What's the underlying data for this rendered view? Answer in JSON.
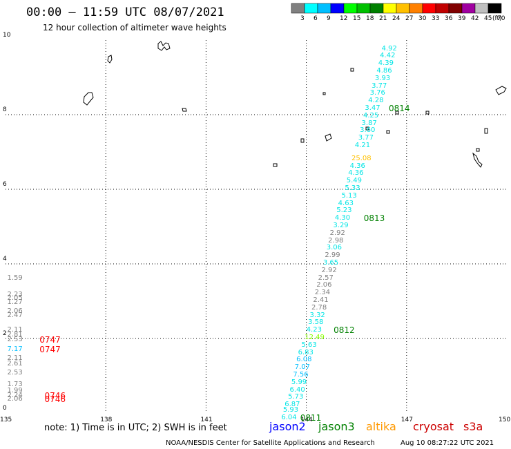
{
  "header": {
    "title": "00:00 – 11:59 UTC 08/07/2021",
    "subtitle": "12 hour collection of altimeter wave heights"
  },
  "legend": {
    "unit": "(ft)",
    "values": [
      "3",
      "6",
      "9",
      "12",
      "15",
      "18",
      "21",
      "24",
      "27",
      "30",
      "33",
      "36",
      "39",
      "42",
      "45",
      "70"
    ],
    "colors": [
      "#808080",
      "#00ffff",
      "#00bfff",
      "#0000ff",
      "#00ff00",
      "#00c000",
      "#008000",
      "#ffff00",
      "#ffc000",
      "#ff8000",
      "#ff0000",
      "#c00000",
      "#800000",
      "#a000a0",
      "#c0c0c0",
      "#000000"
    ]
  },
  "axes": {
    "x_ticks": [
      {
        "value": 135,
        "label": "135"
      },
      {
        "value": 138,
        "label": "138"
      },
      {
        "value": 141,
        "label": "141"
      },
      {
        "value": 144,
        "label": "144"
      },
      {
        "value": 147,
        "label": "147"
      },
      {
        "value": 150,
        "label": "150"
      }
    ],
    "y_ticks": [
      {
        "value": 0,
        "label": "0"
      },
      {
        "value": 2,
        "label": "2"
      },
      {
        "value": 4,
        "label": "4"
      },
      {
        "value": 6,
        "label": "6"
      },
      {
        "value": 8,
        "label": "8"
      },
      {
        "value": 10,
        "label": "10"
      }
    ]
  },
  "observations": [
    {
      "lon": 146.5,
      "lat": 9.75,
      "v": "4.92",
      "c": "#00e5e5"
    },
    {
      "lon": 146.45,
      "lat": 9.55,
      "v": "4.42",
      "c": "#00e5e5"
    },
    {
      "lon": 146.4,
      "lat": 9.35,
      "v": "4.39",
      "c": "#00e5e5"
    },
    {
      "lon": 146.35,
      "lat": 9.15,
      "v": "4.86",
      "c": "#00e5e5"
    },
    {
      "lon": 146.3,
      "lat": 8.95,
      "v": "3.93",
      "c": "#00e5e5"
    },
    {
      "lon": 146.2,
      "lat": 8.75,
      "v": "3.77",
      "c": "#00e5e5"
    },
    {
      "lon": 146.15,
      "lat": 8.55,
      "v": "3.76",
      "c": "#00e5e5"
    },
    {
      "lon": 146.1,
      "lat": 8.35,
      "v": "4.28",
      "c": "#00e5e5"
    },
    {
      "lon": 146.0,
      "lat": 8.15,
      "v": "3.47",
      "c": "#00e5e5"
    },
    {
      "lon": 145.95,
      "lat": 7.95,
      "v": "4.25",
      "c": "#00e5e5"
    },
    {
      "lon": 145.9,
      "lat": 7.75,
      "v": "3.87",
      "c": "#00e5e5"
    },
    {
      "lon": 145.85,
      "lat": 7.55,
      "v": "3.60",
      "c": "#00e5e5"
    },
    {
      "lon": 145.8,
      "lat": 7.35,
      "v": "3.77",
      "c": "#00e5e5"
    },
    {
      "lon": 145.7,
      "lat": 7.15,
      "v": "4.21",
      "c": "#00e5e5"
    },
    {
      "lon": 145.6,
      "lat": 6.8,
      "v": "25.08",
      "c": "#ffc000"
    },
    {
      "lon": 145.55,
      "lat": 6.6,
      "v": "4.36",
      "c": "#00e5e5"
    },
    {
      "lon": 145.5,
      "lat": 6.4,
      "v": "4.36",
      "c": "#00e5e5"
    },
    {
      "lon": 145.45,
      "lat": 6.2,
      "v": "5.49",
      "c": "#00e5e5"
    },
    {
      "lon": 145.4,
      "lat": 6.0,
      "v": "5.33",
      "c": "#00e5e5"
    },
    {
      "lon": 145.3,
      "lat": 5.8,
      "v": "5.13",
      "c": "#00e5e5"
    },
    {
      "lon": 145.2,
      "lat": 5.6,
      "v": "4.63",
      "c": "#00e5e5"
    },
    {
      "lon": 145.15,
      "lat": 5.4,
      "v": "5.23",
      "c": "#00e5e5"
    },
    {
      "lon": 145.1,
      "lat": 5.2,
      "v": "4.30",
      "c": "#00e5e5"
    },
    {
      "lon": 145.05,
      "lat": 5.0,
      "v": "3.29",
      "c": "#00e5e5"
    },
    {
      "lon": 144.95,
      "lat": 4.8,
      "v": "2.92",
      "c": "#808080"
    },
    {
      "lon": 144.9,
      "lat": 4.6,
      "v": "2.98",
      "c": "#808080"
    },
    {
      "lon": 144.85,
      "lat": 4.4,
      "v": "3.06",
      "c": "#00e5e5"
    },
    {
      "lon": 144.8,
      "lat": 4.2,
      "v": "2.99",
      "c": "#808080"
    },
    {
      "lon": 144.75,
      "lat": 4.0,
      "v": "3.65",
      "c": "#00e5e5"
    },
    {
      "lon": 144.7,
      "lat": 3.8,
      "v": "2.92",
      "c": "#808080"
    },
    {
      "lon": 144.6,
      "lat": 3.6,
      "v": "2.57",
      "c": "#808080"
    },
    {
      "lon": 144.55,
      "lat": 3.4,
      "v": "2.06",
      "c": "#808080"
    },
    {
      "lon": 144.5,
      "lat": 3.2,
      "v": "2.34",
      "c": "#808080"
    },
    {
      "lon": 144.45,
      "lat": 3.0,
      "v": "2.41",
      "c": "#808080"
    },
    {
      "lon": 144.4,
      "lat": 2.8,
      "v": "2.78",
      "c": "#808080"
    },
    {
      "lon": 144.35,
      "lat": 2.6,
      "v": "3.32",
      "c": "#00e5e5"
    },
    {
      "lon": 144.3,
      "lat": 2.4,
      "v": "3.58",
      "c": "#00e5e5"
    },
    {
      "lon": 144.25,
      "lat": 2.2,
      "v": "4.23",
      "c": "#00e5e5"
    },
    {
      "lon": 144.2,
      "lat": 2.0,
      "v": "12.49",
      "c": "#88ff00"
    },
    {
      "lon": 144.1,
      "lat": 1.8,
      "v": "5.63",
      "c": "#00e5e5"
    },
    {
      "lon": 144.0,
      "lat": 1.6,
      "v": "6.83",
      "c": "#00e5e5"
    },
    {
      "lon": 143.95,
      "lat": 1.4,
      "v": "6.08",
      "c": "#00bfff"
    },
    {
      "lon": 143.9,
      "lat": 1.2,
      "v": "7.07",
      "c": "#00bfff"
    },
    {
      "lon": 143.85,
      "lat": 1.0,
      "v": "7.56",
      "c": "#00bfff"
    },
    {
      "lon": 143.8,
      "lat": 0.8,
      "v": "5.99",
      "c": "#00e5e5"
    },
    {
      "lon": 143.75,
      "lat": 0.6,
      "v": "6.40",
      "c": "#00e5e5"
    },
    {
      "lon": 143.7,
      "lat": 0.4,
      "v": "5.73",
      "c": "#00e5e5"
    },
    {
      "lon": 143.6,
      "lat": 0.2,
      "v": "6.87",
      "c": "#00e5e5"
    },
    {
      "lon": 143.55,
      "lat": 0.05,
      "v": "5.93",
      "c": "#00e5e5"
    },
    {
      "lon": 143.5,
      "lat": -0.15,
      "v": "6.04",
      "c": "#00e5e5"
    },
    {
      "lon": 135.3,
      "lat": 3.6,
      "v": "1.59",
      "c": "#808080"
    },
    {
      "lon": 135.3,
      "lat": 3.15,
      "v": "2.23",
      "c": "#808080"
    },
    {
      "lon": 135.3,
      "lat": 3.05,
      "v": "2.05",
      "c": "#808080"
    },
    {
      "lon": 135.3,
      "lat": 2.95,
      "v": "1.27",
      "c": "#808080"
    },
    {
      "lon": 135.3,
      "lat": 2.7,
      "v": "2.06",
      "c": "#808080"
    },
    {
      "lon": 135.3,
      "lat": 2.6,
      "v": "2.47",
      "c": "#808080"
    },
    {
      "lon": 135.3,
      "lat": 2.2,
      "v": "2.11",
      "c": "#808080"
    },
    {
      "lon": 135.3,
      "lat": 2.08,
      "v": "2.81",
      "c": "#808080"
    },
    {
      "lon": 135.3,
      "lat": 1.95,
      "v": "2.53",
      "c": "#808080"
    },
    {
      "lon": 135.3,
      "lat": 1.68,
      "v": "7.17",
      "c": "#00bfff"
    },
    {
      "lon": 135.3,
      "lat": 1.45,
      "v": "2.11",
      "c": "#808080"
    },
    {
      "lon": 135.3,
      "lat": 1.3,
      "v": "2.61",
      "c": "#808080"
    },
    {
      "lon": 135.3,
      "lat": 1.05,
      "v": "2.53",
      "c": "#808080"
    },
    {
      "lon": 135.3,
      "lat": 0.75,
      "v": "1.73",
      "c": "#808080"
    },
    {
      "lon": 135.3,
      "lat": 0.57,
      "v": "1.99",
      "c": "#808080"
    },
    {
      "lon": 135.3,
      "lat": 0.45,
      "v": "2.24",
      "c": "#808080"
    },
    {
      "lon": 135.3,
      "lat": 0.35,
      "v": "2.06",
      "c": "#808080"
    }
  ],
  "time_labels": [
    {
      "lon": 146.55,
      "lat": 8.15,
      "t": "0814",
      "c": "#008000"
    },
    {
      "lon": 145.8,
      "lat": 5.2,
      "t": "0813",
      "c": "#008000"
    },
    {
      "lon": 144.9,
      "lat": 2.2,
      "t": "0812",
      "c": "#008000"
    },
    {
      "lon": 143.9,
      "lat": -0.15,
      "t": "0811",
      "c": "#008000"
    },
    {
      "lon": 136.1,
      "lat": 1.95,
      "t": "0747",
      "c": "#ff0000"
    },
    {
      "lon": 136.1,
      "lat": 1.68,
      "t": "0747",
      "c": "#ff0000"
    },
    {
      "lon": 136.25,
      "lat": 0.45,
      "t": "0746",
      "c": "#ff0000"
    },
    {
      "lon": 136.25,
      "lat": 0.35,
      "t": "0746",
      "c": "#ff0000"
    }
  ],
  "note": "note: 1) Time is in UTC; 2) SWH is in feet",
  "satellites": [
    {
      "name": "jason2",
      "color": "#0000ff"
    },
    {
      "name": "jason3",
      "color": "#008000"
    },
    {
      "name": "altika",
      "color": "#ff9900"
    },
    {
      "name": "cryosat",
      "color": "#cc0000"
    },
    {
      "name": "s3a",
      "color": "#cc0000"
    }
  ],
  "credit": "NOAA/NESDIS Center for Satellite Applications and Research",
  "timestamp": "Aug 10 08:27:22 UTC 2021"
}
